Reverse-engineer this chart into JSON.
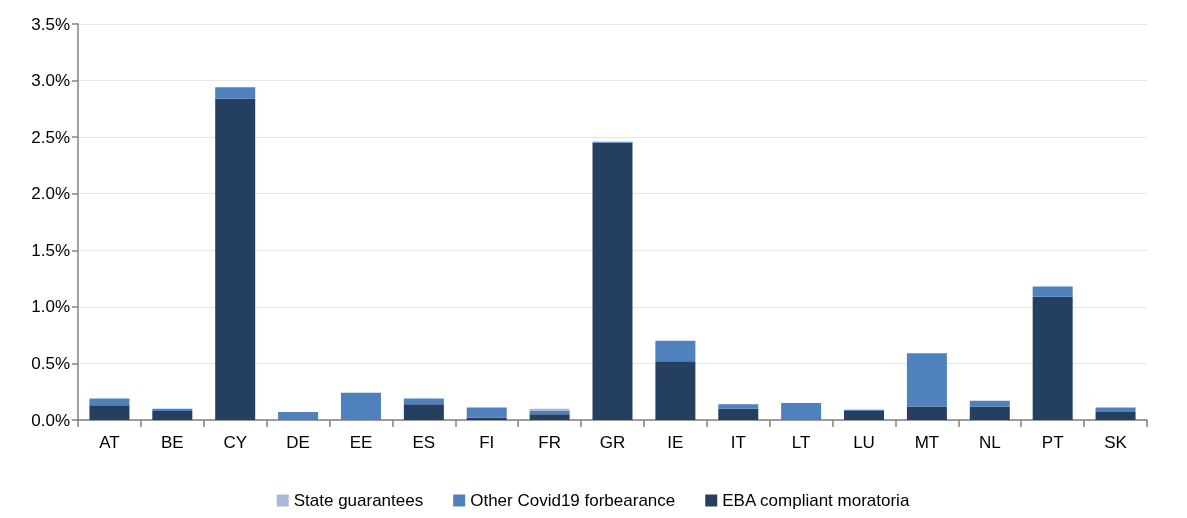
{
  "chart_data": {
    "type": "bar",
    "stacked": true,
    "categories": [
      "AT",
      "BE",
      "CY",
      "DE",
      "EE",
      "ES",
      "FI",
      "FR",
      "GR",
      "IE",
      "IT",
      "LT",
      "LU",
      "MT",
      "NL",
      "PT",
      "SK"
    ],
    "series": [
      {
        "name": "EBA compliant moratoria",
        "color": "#243f60",
        "values": [
          0.13,
          0.08,
          2.84,
          0,
          0,
          0.14,
          0.02,
          0.05,
          2.45,
          0.52,
          0.1,
          0,
          0.08,
          0.12,
          0.12,
          1.09,
          0.07
        ]
      },
      {
        "name": "Other Covid19 forbearance",
        "color": "#4f81bd",
        "values": [
          0.06,
          0.02,
          0.1,
          0.07,
          0.24,
          0.05,
          0.09,
          0.03,
          0.01,
          0.18,
          0.04,
          0.15,
          0.01,
          0.47,
          0.05,
          0.09,
          0.04
        ]
      },
      {
        "name": "State guarantees",
        "color": "#a9b9da",
        "values": [
          0,
          0,
          0,
          0,
          0,
          0,
          0,
          0.02,
          0,
          0,
          0,
          0,
          0,
          0,
          0,
          0,
          0
        ]
      }
    ],
    "ylim": [
      0,
      3.5
    ],
    "yticks": [
      {
        "value": 0,
        "label": "0.0%"
      },
      {
        "value": 0.5,
        "label": "0.5%"
      },
      {
        "value": 1,
        "label": "1.0%"
      },
      {
        "value": 1.5,
        "label": "1.5%"
      },
      {
        "value": 2,
        "label": "2.0%"
      },
      {
        "value": 2.5,
        "label": "2.5%"
      },
      {
        "value": 3,
        "label": "3.0%"
      },
      {
        "value": 3.5,
        "label": "3.5%"
      }
    ],
    "grid": "y",
    "legend": "bottom"
  }
}
